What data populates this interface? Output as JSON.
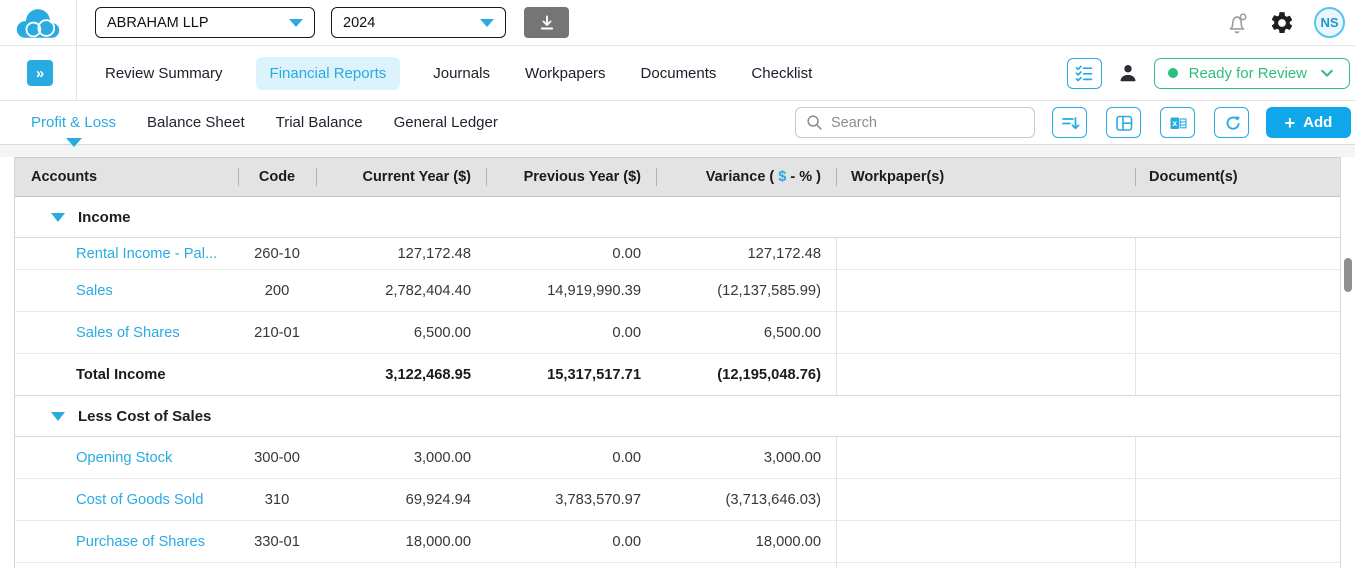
{
  "colors": {
    "brand_blue": "#29abe2",
    "active_tab_bg": "#ddf3fc",
    "status_green": "#2ebd7c",
    "add_button_blue": "#0fa7e9",
    "table_header_bg": "#e3e3e3",
    "link_blue": "#29abe2"
  },
  "icons": [
    "cloud-logo",
    "download",
    "bell-notification",
    "gear",
    "double-chevron-right",
    "checklist",
    "person",
    "chevron-down",
    "search",
    "sort-descending",
    "layout-columns",
    "excel-export",
    "refresh",
    "plus",
    "collapse-triangle"
  ],
  "topbar": {
    "entity_select": "ABRAHAM LLP",
    "year_select": "2024",
    "avatar_initials": "NS"
  },
  "nav": {
    "tabs": [
      {
        "label": "Review Summary",
        "active": false
      },
      {
        "label": "Financial Reports",
        "active": true
      },
      {
        "label": "Journals",
        "active": false
      },
      {
        "label": "Workpapers",
        "active": false
      },
      {
        "label": "Documents",
        "active": false
      },
      {
        "label": "Checklist",
        "active": false
      }
    ],
    "status_label": "Ready for Review"
  },
  "toolbar": {
    "tabs": [
      {
        "label": "Profit & Loss",
        "active": true
      },
      {
        "label": "Balance Sheet",
        "active": false
      },
      {
        "label": "Trial Balance",
        "active": false
      },
      {
        "label": "General Ledger",
        "active": false
      }
    ],
    "search_placeholder": "Search",
    "add_label": "Add"
  },
  "table": {
    "columns": {
      "accounts": "Accounts",
      "code": "Code",
      "current": "Current Year ($)",
      "previous": "Previous Year ($)",
      "variance_pre": "Variance ( ",
      "variance_dollar": "$",
      "variance_post": " - % )",
      "workpapers": "Workpaper(s)",
      "documents": "Document(s)"
    },
    "sections": [
      {
        "title": "Income",
        "rows": [
          {
            "account": "Rental Income - Pal...",
            "code": "260-10",
            "current": "127,172.48",
            "previous": "0.00",
            "variance": "127,172.48",
            "clipped": true
          },
          {
            "account": "Sales",
            "code": "200",
            "current": "2,782,404.40",
            "previous": "14,919,990.39",
            "variance": "(12,137,585.99)"
          },
          {
            "account": "Sales of Shares",
            "code": "210-01",
            "current": "6,500.00",
            "previous": "0.00",
            "variance": "6,500.00"
          }
        ],
        "total": {
          "account": "Total Income",
          "current": "3,122,468.95",
          "previous": "15,317,517.71",
          "variance": "(12,195,048.76)"
        }
      },
      {
        "title": "Less Cost of Sales",
        "rows": [
          {
            "account": "Opening Stock",
            "code": "300-00",
            "current": "3,000.00",
            "previous": "0.00",
            "variance": "3,000.00"
          },
          {
            "account": "Cost of Goods Sold",
            "code": "310",
            "current": "69,924.94",
            "previous": "3,783,570.97",
            "variance": "(3,713,646.03)"
          },
          {
            "account": "Purchase of Shares",
            "code": "330-01",
            "current": "18,000.00",
            "previous": "0.00",
            "variance": "18,000.00"
          }
        ]
      }
    ]
  }
}
